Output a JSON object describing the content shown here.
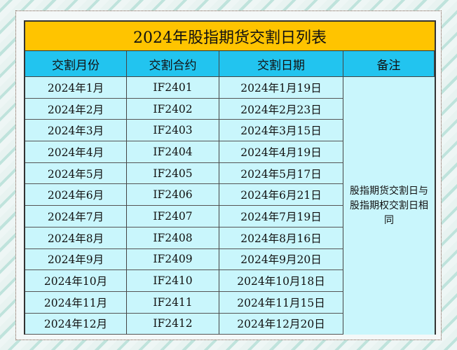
{
  "title": "2024年股指期货交割日列表",
  "headers": [
    "交割月份",
    "交割合约",
    "交割日期",
    "备注"
  ],
  "rows": [
    [
      "2024年1月",
      "IF2401",
      "2024年1月19日"
    ],
    [
      "2024年2月",
      "IF2402",
      "2024年2月23日"
    ],
    [
      "2024年3月",
      "IF2403",
      "2024年3月15日"
    ],
    [
      "2024年4月",
      "IF2404",
      "2024年4月19日"
    ],
    [
      "2024年5月",
      "IF2405",
      "2024年5月17日"
    ],
    [
      "2024年6月",
      "IF2406",
      "2024年6月21日"
    ],
    [
      "2024年7月",
      "IF2407",
      "2024年7月19日"
    ],
    [
      "2024年8月",
      "IF2408",
      "2024年8月16日"
    ],
    [
      "2024年9月",
      "IF2409",
      "2024年9月20日"
    ],
    [
      "2024年10月",
      "IF2410",
      "2024年10月18日"
    ],
    [
      "2024年11月",
      "IF2411",
      "2024年11月15日"
    ],
    [
      "2024年12月",
      "IF2412",
      "2024年12月20日"
    ]
  ],
  "note": "股指期货交割日与股指期权交割日相同",
  "colors": {
    "title_bg": "#ffc400",
    "header_bg": "#22c4ef",
    "cell_bg": "#c9f6fc"
  }
}
